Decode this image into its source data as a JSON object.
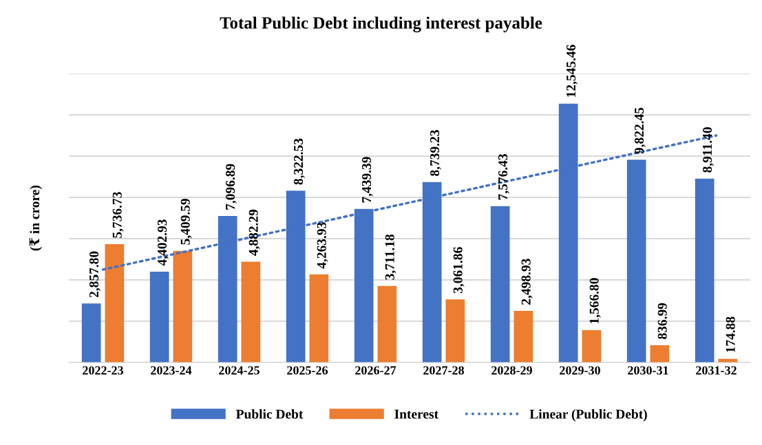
{
  "chart_data": {
    "type": "bar",
    "title": "Total Public Debt including interest payable",
    "ylabel": "(₹ in crore)",
    "categories": [
      "2022-23",
      "2023-24",
      "2024-25",
      "2025-26",
      "2026-27",
      "2027-28",
      "2028-29",
      "2029-30",
      "2030-31",
      "2031-32"
    ],
    "series": [
      {
        "name": "Public Debt",
        "color": "#4472c4",
        "values": [
          2857.8,
          4402.93,
          7096.89,
          8322.53,
          7439.39,
          8739.23,
          7576.43,
          12545.46,
          9822.45,
          8911.4
        ],
        "value_labels": [
          "2,857.80",
          "4,402.93",
          "7,096.89",
          "8,322.53",
          "7,439.39",
          "8,739.23",
          "7,576.43",
          "12,545.46",
          "9,822.45",
          "8,911.40"
        ]
      },
      {
        "name": "Interest",
        "color": "#ed7d31",
        "values": [
          5736.73,
          5409.59,
          4882.29,
          4263.93,
          3711.18,
          3061.86,
          2498.93,
          1566.8,
          836.99,
          174.88
        ],
        "value_labels": [
          "5,736.73",
          "5,409.59",
          "4,882.29",
          "4,263.93",
          "3,711.18",
          "3,061.86",
          "2,498.93",
          "1,566.80",
          "836.99",
          "174.88"
        ]
      },
      {
        "name": "Linear (Public Debt)",
        "type": "line",
        "color": "#4472c4",
        "line_style": "dotted",
        "x": [
          "2022-23",
          "2031-32"
        ],
        "values": [
          4500,
          11000
        ]
      }
    ],
    "ylim": [
      0,
      14000
    ],
    "yticks": [
      {
        "value": 0,
        "label": null
      },
      {
        "value": 2000,
        "label": null
      },
      {
        "value": 4000,
        "label": null
      },
      {
        "value": 6000,
        "label": null
      },
      {
        "value": 8000,
        "label": null
      },
      {
        "value": 10000,
        "label": null
      },
      {
        "value": 12000,
        "label": null
      },
      {
        "value": 14000,
        "label": null
      }
    ],
    "tick_labels": "x",
    "grid": "y",
    "legend": "bottom"
  }
}
